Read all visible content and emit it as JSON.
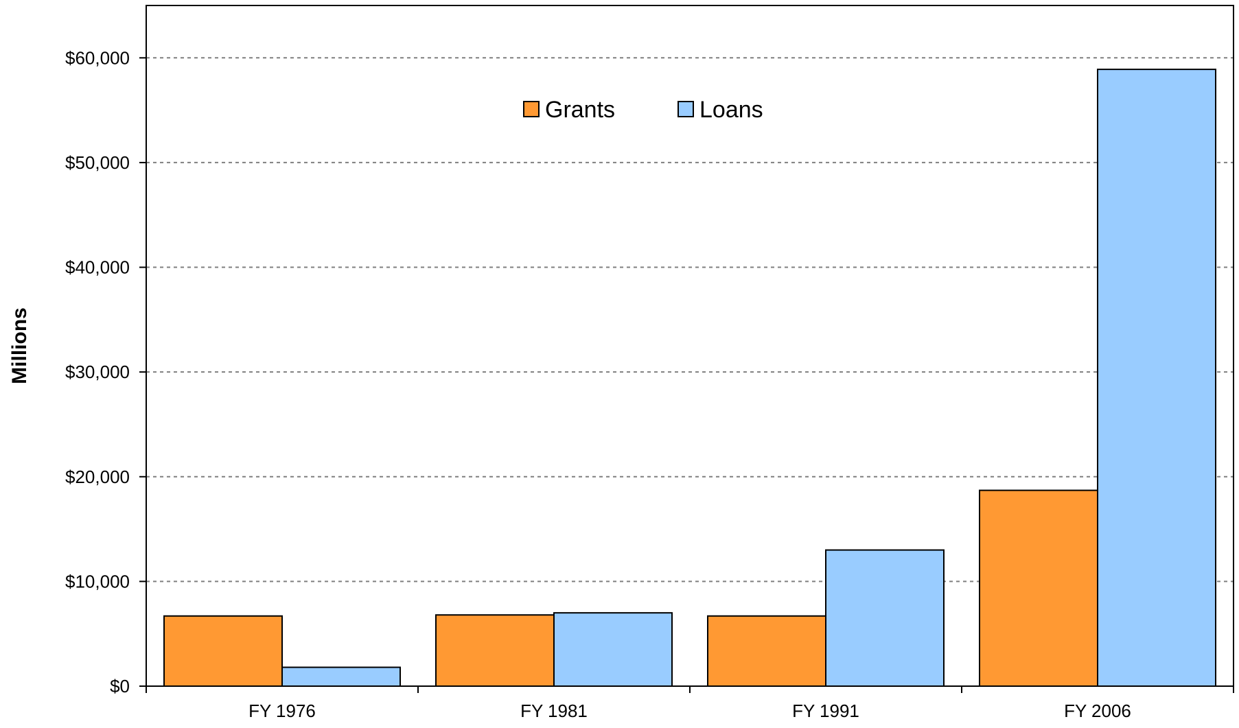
{
  "chart_data": {
    "type": "bar",
    "title": "",
    "xlabel": "",
    "ylabel": "Millions",
    "categories": [
      "FY 1976",
      "FY 1981",
      "FY 1991",
      "FY 2006"
    ],
    "series": [
      {
        "name": "Grants",
        "color": "#FF9933",
        "values": [
          6700,
          6800,
          6700,
          18700
        ]
      },
      {
        "name": "Loans",
        "color": "#99CCFF",
        "values": [
          1800,
          7000,
          13000,
          58900
        ]
      }
    ],
    "ylim": [
      0,
      65000
    ],
    "yticks": [
      0,
      10000,
      20000,
      30000,
      40000,
      50000,
      60000
    ],
    "ytick_labels": [
      "$0",
      "$10,000",
      "$20,000",
      "$30,000",
      "$40,000",
      "$50,000",
      "$60,000"
    ],
    "grid": true,
    "grid_style": "dashed",
    "legend_position": "top-center"
  }
}
